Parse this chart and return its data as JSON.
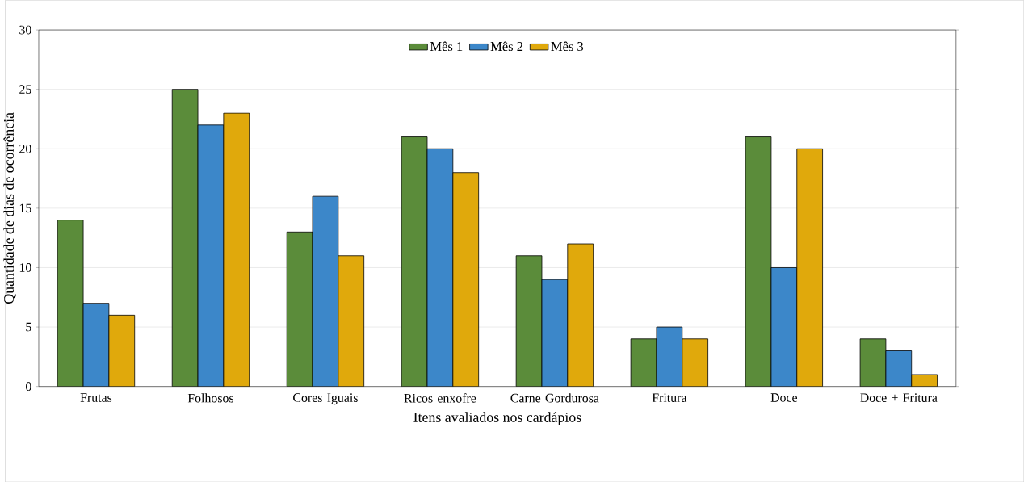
{
  "chart_data": {
    "type": "bar",
    "xlabel": "Itens avaliados nos cardápios",
    "ylabel": "Quantidade de dias de ocorrência",
    "categories": [
      "Frutas",
      "Folhosos",
      "Cores Iguais",
      "Ricos enxofre",
      "Carne Gordurosa",
      "Fritura",
      "Doce",
      "Doce + Fritura"
    ],
    "series": [
      {
        "name": "Mês 1",
        "color": "#5b8c3a",
        "values": [
          14,
          25,
          13,
          21,
          11,
          4,
          21,
          4
        ]
      },
      {
        "name": "Mês 2",
        "color": "#3c87c9",
        "values": [
          7,
          22,
          16,
          20,
          9,
          5,
          10,
          3
        ]
      },
      {
        "name": "Mês 3",
        "color": "#e0a90c",
        "values": [
          6,
          23,
          11,
          18,
          12,
          4,
          20,
          1
        ]
      }
    ],
    "ylim": [
      0,
      30
    ],
    "yticks": [
      0,
      5,
      10,
      15,
      20,
      25,
      30
    ],
    "grid": "y",
    "legend": "top"
  }
}
